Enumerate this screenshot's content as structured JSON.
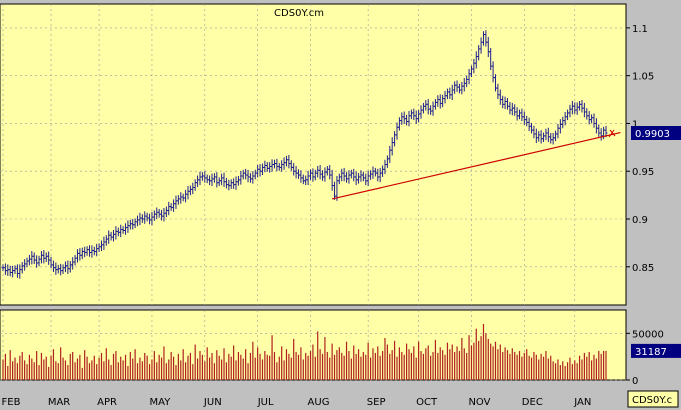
{
  "chart_data": {
    "type": "ohlc",
    "title": "CDS0Y.cm",
    "price_axis": {
      "ticks": [
        "1.1",
        "1.05",
        "1",
        "0.95",
        "0.9",
        "0.85"
      ],
      "tick_values": [
        1.1,
        1.05,
        1.0,
        0.95,
        0.9,
        0.85
      ],
      "range": [
        0.81,
        1.125
      ],
      "last_value_label": "0.9903"
    },
    "volume_axis": {
      "ticks": [
        "50000",
        "0"
      ],
      "tick_values": [
        50000,
        0
      ],
      "range": [
        0,
        75000
      ],
      "last_value_label": "31187"
    },
    "x_labels": [
      "FEB",
      "MAR",
      "APR",
      "MAY",
      "JUN",
      "JUL",
      "AUG",
      "SEP",
      "OCT",
      "NOV",
      "DEC",
      "JAN"
    ],
    "month_start_index": [
      0,
      20,
      40,
      62,
      84,
      106,
      128,
      152,
      173,
      195,
      217,
      238
    ],
    "close": [
      0.849,
      0.846,
      0.847,
      0.844,
      0.846,
      0.848,
      0.843,
      0.847,
      0.851,
      0.853,
      0.856,
      0.858,
      0.861,
      0.857,
      0.854,
      0.858,
      0.862,
      0.859,
      0.861,
      0.857,
      0.852,
      0.849,
      0.847,
      0.848,
      0.846,
      0.849,
      0.851,
      0.848,
      0.852,
      0.855,
      0.859,
      0.864,
      0.862,
      0.866,
      0.865,
      0.868,
      0.865,
      0.867,
      0.866,
      0.869,
      0.871,
      0.873,
      0.876,
      0.879,
      0.883,
      0.881,
      0.884,
      0.887,
      0.886,
      0.889,
      0.888,
      0.891,
      0.893,
      0.895,
      0.894,
      0.897,
      0.899,
      0.901,
      0.9,
      0.903,
      0.901,
      0.899,
      0.902,
      0.905,
      0.907,
      0.905,
      0.903,
      0.906,
      0.909,
      0.913,
      0.912,
      0.916,
      0.919,
      0.921,
      0.923,
      0.922,
      0.926,
      0.929,
      0.931,
      0.933,
      0.938,
      0.941,
      0.944,
      0.945,
      0.943,
      0.941,
      0.94,
      0.942,
      0.944,
      0.938,
      0.94,
      0.943,
      0.939,
      0.936,
      0.935,
      0.938,
      0.936,
      0.939,
      0.941,
      0.945,
      0.948,
      0.946,
      0.944,
      0.942,
      0.945,
      0.948,
      0.952,
      0.95,
      0.954,
      0.956,
      0.953,
      0.955,
      0.957,
      0.958,
      0.955,
      0.954,
      0.957,
      0.959,
      0.962,
      0.958,
      0.954,
      0.95,
      0.948,
      0.946,
      0.943,
      0.94,
      0.941,
      0.945,
      0.948,
      0.944,
      0.948,
      0.951,
      0.947,
      0.944,
      0.949,
      0.952,
      0.946,
      0.935,
      0.924,
      0.94,
      0.944,
      0.948,
      0.945,
      0.942,
      0.946,
      0.948,
      0.944,
      0.941,
      0.944,
      0.946,
      0.943,
      0.94,
      0.945,
      0.947,
      0.95,
      0.948,
      0.944,
      0.948,
      0.952,
      0.957,
      0.963,
      0.972,
      0.98,
      0.988,
      0.996,
      1.003,
      1.007,
      1.005,
      1.002,
      1.008,
      1.011,
      1.008,
      1.005,
      1.01,
      1.014,
      1.018,
      1.02,
      1.015,
      1.013,
      1.018,
      1.022,
      1.025,
      1.021,
      1.026,
      1.029,
      1.033,
      1.03,
      1.035,
      1.04,
      1.038,
      1.035,
      1.039,
      1.042,
      1.046,
      1.052,
      1.057,
      1.063,
      1.07,
      1.078,
      1.085,
      1.093,
      1.085,
      1.075,
      1.06,
      1.048,
      1.037,
      1.03,
      1.025,
      1.02,
      1.023,
      1.018,
      1.014,
      1.016,
      1.012,
      1.008,
      1.011,
      1.007,
      1.004,
      1.001,
      0.997,
      0.993,
      0.989,
      0.985,
      0.988,
      0.984,
      0.987,
      0.99,
      0.986,
      0.983,
      0.985,
      0.989,
      0.995,
      0.999,
      1.003,
      1.007,
      1.011,
      1.015,
      1.018,
      1.014,
      1.017,
      1.02,
      1.016,
      1.012,
      1.008,
      1.004,
      1.006,
      1.0,
      0.995,
      0.99,
      0.987,
      0.993,
      0.99
    ],
    "volume": [
      22000,
      28000,
      15000,
      32000,
      20000,
      24000,
      18000,
      26000,
      30000,
      21000,
      17000,
      27000,
      23000,
      19000,
      31000,
      16000,
      29000,
      22000,
      25000,
      14000,
      26000,
      33000,
      20000,
      18000,
      35000,
      24000,
      21000,
      16000,
      28000,
      30000,
      19000,
      23000,
      27000,
      13000,
      32000,
      25000,
      18000,
      21000,
      26000,
      17000,
      24000,
      29000,
      20000,
      34000,
      22000,
      16000,
      28000,
      31000,
      19000,
      25000,
      21000,
      27000,
      15000,
      30000,
      23000,
      33000,
      18000,
      24000,
      20000,
      29000,
      26000,
      17000,
      22000,
      31000,
      19000,
      27000,
      24000,
      36000,
      18000,
      22000,
      30000,
      25000,
      16000,
      28000,
      21000,
      33000,
      19000,
      26000,
      29000,
      17000,
      38000,
      23000,
      31000,
      27000,
      20000,
      35000,
      24000,
      29000,
      18000,
      32000,
      26000,
      22000,
      34000,
      19000,
      28000,
      25000,
      37000,
      21000,
      30000,
      27000,
      23000,
      33000,
      18000,
      29000,
      41000,
      24000,
      35000,
      28000,
      22000,
      31000,
      27000,
      26000,
      48000,
      30000,
      19000,
      25000,
      36000,
      21000,
      33000,
      28000,
      24000,
      44000,
      30000,
      27000,
      35000,
      22000,
      29000,
      26000,
      31000,
      38000,
      25000,
      52000,
      33000,
      28000,
      46000,
      30000,
      24000,
      39000,
      27000,
      32000,
      35000,
      29000,
      26000,
      41000,
      31000,
      23000,
      37000,
      28000,
      33000,
      25000,
      30000,
      27000,
      40000,
      24000,
      34000,
      29000,
      36000,
      26000,
      31000,
      45000,
      38000,
      28000,
      32000,
      42000,
      25000,
      35000,
      30000,
      27000,
      39000,
      33000,
      29000,
      36000,
      24000,
      41000,
      31000,
      28000,
      34000,
      37000,
      26000,
      30000,
      43000,
      29000,
      35000,
      32000,
      27000,
      40000,
      33000,
      38000,
      30000,
      36000,
      31000,
      45000,
      34000,
      29000,
      48000,
      37000,
      40000,
      55000,
      42000,
      47000,
      60000,
      50000,
      44000,
      39000,
      36000,
      41000,
      33000,
      38000,
      30000,
      35000,
      32000,
      28000,
      34000,
      30000,
      27000,
      31000,
      25000,
      29000,
      33000,
      26000,
      24000,
      30000,
      27000,
      22000,
      28000,
      25000,
      31000,
      23000,
      26000,
      20000,
      18000,
      22000,
      16000,
      20000,
      15000,
      19000,
      24000,
      17000,
      21000,
      18000,
      26000,
      22000,
      29000,
      25000,
      30000,
      21000,
      27000,
      23000,
      31187,
      28000,
      31187,
      31187
    ],
    "trendline": {
      "from_index": 137,
      "to_index": 258,
      "from_value": 0.921,
      "to_value": 0.991
    },
    "grid": true,
    "colors": {
      "plot_background": "#ffffa8",
      "frame_background": "#c0c0c0",
      "bars": "#1f1f8f",
      "volume_bars": "#b02020",
      "trendline": "#cc0000",
      "label_box": "#000080",
      "label_text": "#ffffff"
    },
    "footer_label": "CDS0Y.c"
  }
}
